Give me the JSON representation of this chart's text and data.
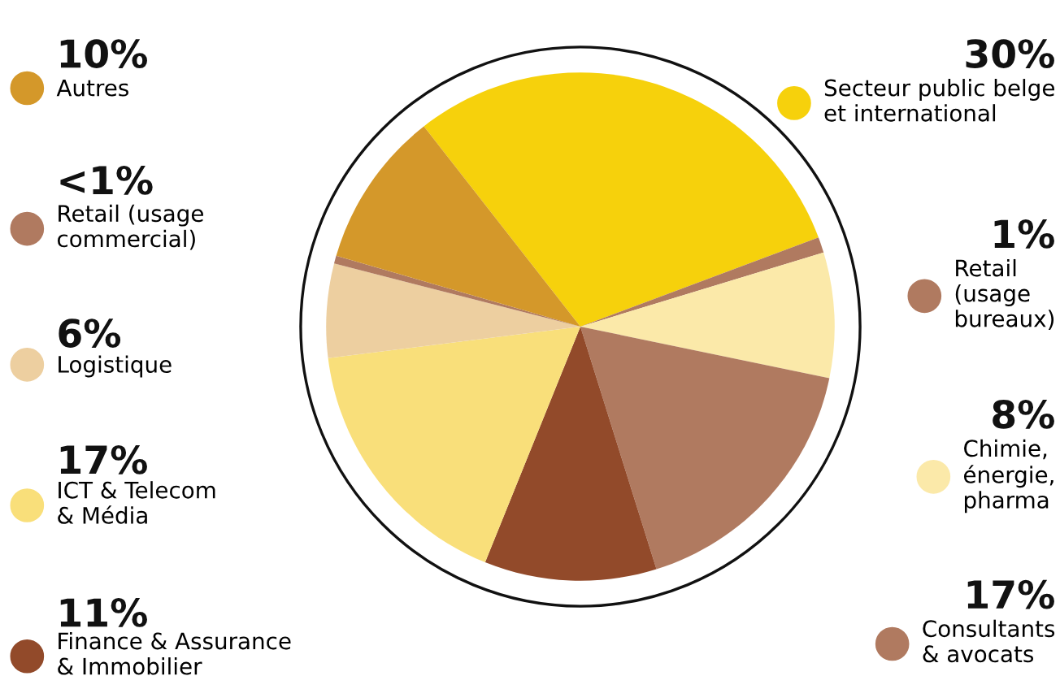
{
  "chart_data": {
    "type": "pie",
    "categories": [
      "Secteur public belge\net international",
      "Retail\n(usage\nbureaux)",
      "Chimie,\nénergie,\npharma",
      "Consultants\n& avocats",
      "Finance & Assurance\n& Immobilier",
      "ICT & Telecom\n& Média",
      "Logistique",
      "Retail (usage\ncommercial)",
      "Autres"
    ],
    "values": [
      30,
      1,
      8,
      17,
      11,
      17,
      6,
      0.5,
      10
    ],
    "value_labels": [
      "30%",
      "1%",
      "8%",
      "17%",
      "11%",
      "17%",
      "6%",
      "<1%",
      "10%"
    ],
    "colors": [
      "#f6d10c",
      "#b07a60",
      "#fbe9a9",
      "#b07a60",
      "#924a2a",
      "#f9df7a",
      "#edcfa0",
      "#b07a60",
      "#d4982a"
    ],
    "legend": "left"
  }
}
